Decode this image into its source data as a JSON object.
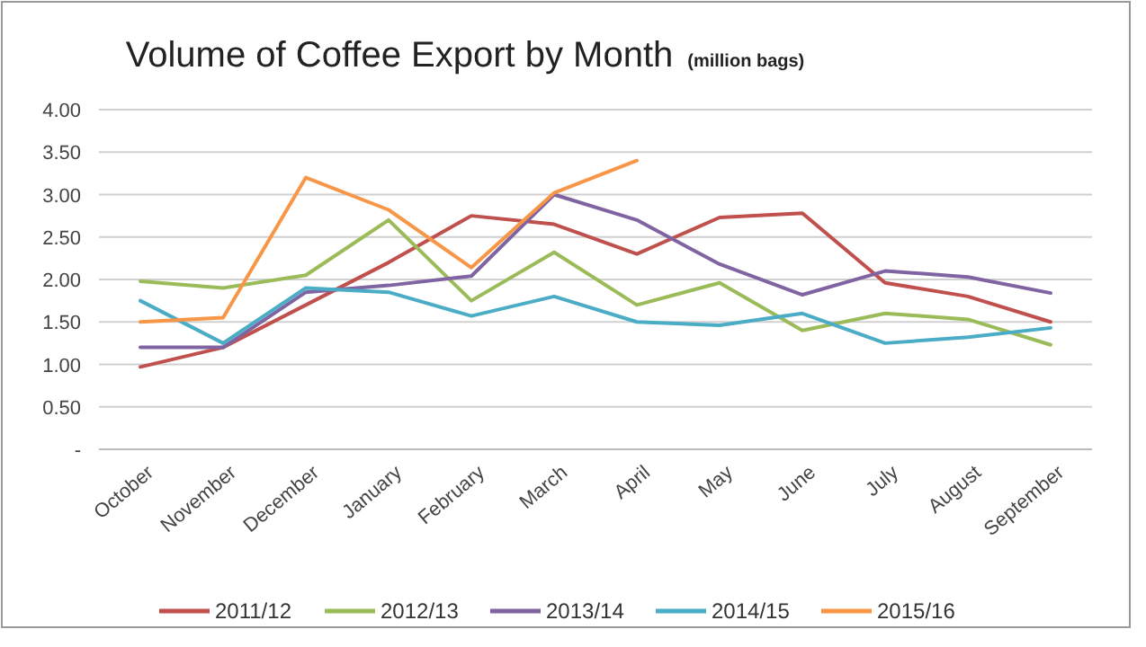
{
  "chart_data": {
    "type": "line",
    "title": "Volume of Coffee Export by Month",
    "subtitle": "(million bags)",
    "categories": [
      "October",
      "November",
      "December",
      "January",
      "February",
      "March",
      "April",
      "May",
      "June",
      "July",
      "August",
      "September"
    ],
    "series": [
      {
        "name": "2011/12",
        "color": "#c0504d",
        "values": [
          0.97,
          1.2,
          1.7,
          2.2,
          2.75,
          2.65,
          2.3,
          2.73,
          2.78,
          1.96,
          1.8,
          1.5
        ]
      },
      {
        "name": "2012/13",
        "color": "#9bbb59",
        "values": [
          1.98,
          1.9,
          2.05,
          2.7,
          1.75,
          2.32,
          1.7,
          1.96,
          1.4,
          1.6,
          1.53,
          1.23
        ]
      },
      {
        "name": "2013/14",
        "color": "#8064a2",
        "values": [
          1.2,
          1.2,
          1.85,
          1.93,
          2.04,
          3.0,
          2.7,
          2.18,
          1.82,
          2.1,
          2.03,
          1.84
        ]
      },
      {
        "name": "2014/15",
        "color": "#4bacc6",
        "values": [
          1.75,
          1.25,
          1.9,
          1.85,
          1.57,
          1.8,
          1.5,
          1.46,
          1.6,
          1.25,
          1.32,
          1.43
        ]
      },
      {
        "name": "2015/16",
        "color": "#f79646",
        "values": [
          1.5,
          1.55,
          3.2,
          2.82,
          2.14,
          3.02,
          3.4,
          null,
          null,
          null,
          null,
          null
        ]
      }
    ],
    "ylim": [
      0,
      4
    ],
    "yticks": [
      {
        "value": 0,
        "label": "-"
      },
      {
        "value": 0.5,
        "label": "0.50"
      },
      {
        "value": 1,
        "label": "1.00"
      },
      {
        "value": 1.5,
        "label": "1.50"
      },
      {
        "value": 2,
        "label": "2.00"
      },
      {
        "value": 2.5,
        "label": "2.50"
      },
      {
        "value": 3,
        "label": "3.00"
      },
      {
        "value": 3.5,
        "label": "3.50"
      },
      {
        "value": 4,
        "label": "4.00"
      }
    ],
    "grid": "y",
    "legend": "bottom",
    "marker": "none",
    "line_style": "solid"
  }
}
